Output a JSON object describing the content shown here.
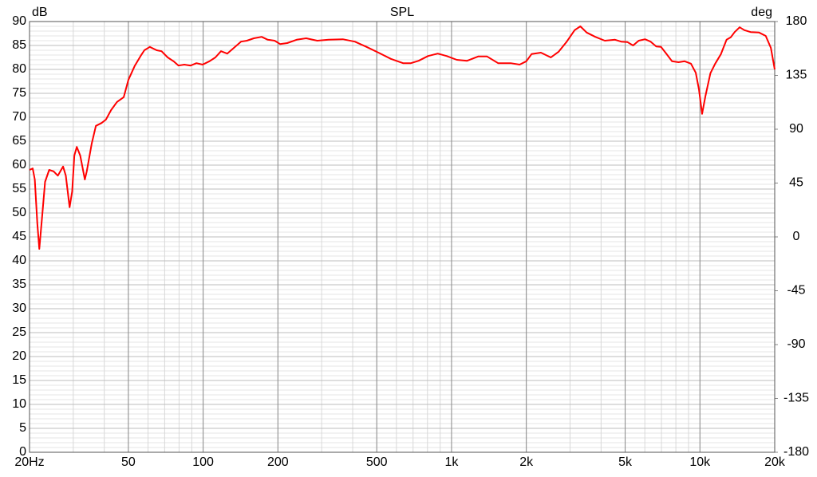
{
  "chart_data": {
    "type": "line",
    "title": "SPL",
    "y_label": "dB",
    "y2_label": "deg",
    "log_x": true,
    "grid": true,
    "xlim": [
      20,
      20000
    ],
    "ylim": [
      0,
      90
    ],
    "y2lim": [
      -180,
      180
    ],
    "xticks": [
      {
        "value": 20,
        "label": "20Hz"
      },
      50,
      100,
      200,
      500,
      {
        "value": 1000,
        "label": "1k"
      },
      {
        "value": 2000,
        "label": "2k"
      },
      {
        "value": 5000,
        "label": "5k"
      },
      {
        "value": 10000,
        "label": "10k"
      },
      {
        "value": 20000,
        "label": "20k"
      }
    ],
    "yticks": [
      0,
      5,
      10,
      15,
      20,
      25,
      30,
      35,
      40,
      45,
      50,
      55,
      60,
      65,
      70,
      75,
      80,
      85,
      90
    ],
    "y2ticks": [
      -180,
      -135,
      -90,
      -45,
      0,
      45,
      90,
      135,
      180
    ],
    "x": [
      20,
      20.6,
      21,
      21.5,
      21.9,
      22.5,
      23.1,
      24,
      25,
      26,
      27.3,
      28,
      29,
      29.7,
      30.3,
      31,
      32,
      33.4,
      34,
      35.6,
      37,
      39,
      40.6,
      42.6,
      45,
      47.9,
      50,
      53,
      56,
      58,
      61,
      65,
      68,
      72,
      76,
      79.6,
      84,
      89,
      94,
      99.5,
      106,
      112,
      118,
      125,
      133,
      142,
      150,
      160,
      172,
      182,
      194,
      204,
      218,
      238,
      260,
      288,
      320,
      365,
      408,
      455,
      508,
      570,
      638,
      686,
      737,
      805,
      880,
      955,
      1050,
      1155,
      1280,
      1390,
      1540,
      1730,
      1880,
      2000,
      2100,
      2290,
      2510,
      2700,
      2900,
      3130,
      3300,
      3500,
      3790,
      4140,
      4550,
      4820,
      5110,
      5380,
      5670,
      6010,
      6330,
      6670,
      6970,
      7340,
      7720,
      8200,
      8680,
      9200,
      9620,
      9910,
      10200,
      10530,
      11020,
      11520,
      12150,
      12800,
      13300,
      13800,
      14450,
      15100,
      16000,
      17300,
      18400,
      19300,
      20000
    ],
    "series": [
      {
        "color": "#ff0000",
        "values": [
          59,
          59.3,
          57,
          47.8,
          42.5,
          49.5,
          56.5,
          59,
          58.7,
          57.8,
          59.7,
          57.8,
          51.2,
          54.5,
          62,
          63.8,
          62,
          57,
          58.7,
          64.5,
          68.2,
          68.8,
          69.5,
          71.5,
          73.2,
          74.2,
          77.8,
          80.7,
          82.8,
          84,
          84.7,
          84,
          83.8,
          82.5,
          81.7,
          80.8,
          81,
          80.8,
          81.3,
          81,
          81.7,
          82.5,
          83.8,
          83.3,
          84.5,
          85.8,
          86,
          86.5,
          86.8,
          86.2,
          86,
          85.3,
          85.5,
          86.2,
          86.5,
          86,
          86.2,
          86.3,
          85.8,
          84.7,
          83.5,
          82.2,
          81.3,
          81.3,
          81.8,
          82.8,
          83.3,
          82.8,
          82,
          81.8,
          82.7,
          82.7,
          81.3,
          81.3,
          81,
          81.7,
          83.2,
          83.5,
          82.5,
          83.7,
          85.7,
          88.2,
          89,
          87.7,
          86.8,
          86,
          86.2,
          85.8,
          85.7,
          85,
          86,
          86.3,
          85.8,
          84.8,
          84.7,
          83.2,
          81.7,
          81.5,
          81.7,
          81.2,
          79.3,
          75.8,
          70.7,
          74.5,
          79.2,
          81.2,
          83.2,
          86.2,
          86.7,
          87.8,
          88.8,
          88.2,
          87.8,
          87.7,
          87,
          84.5,
          80
        ]
      }
    ]
  }
}
